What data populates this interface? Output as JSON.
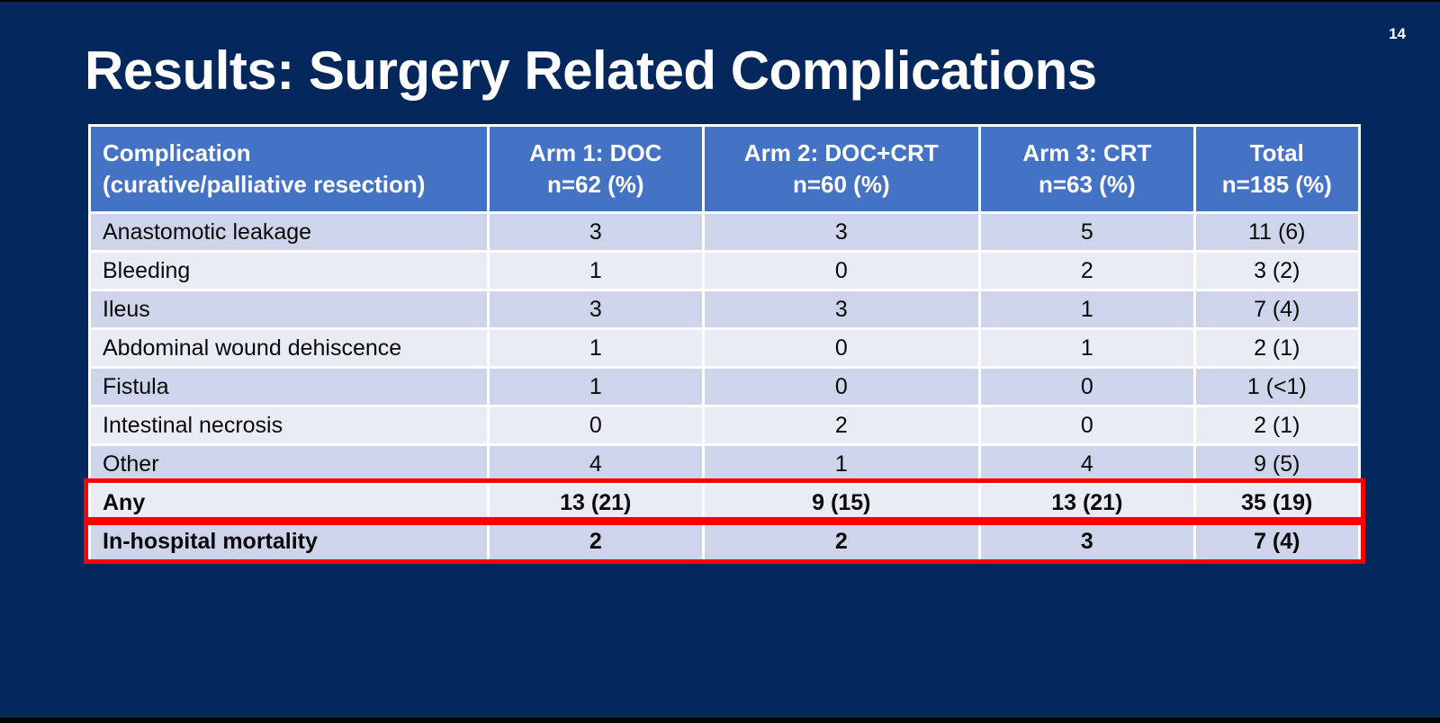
{
  "slide": {
    "page_number": "14",
    "title": "Results: Surgery Related Complications"
  },
  "colors": {
    "background": "#05285c",
    "header_bg": "#4472c4",
    "row_odd": "#ced4e9",
    "row_even": "#e9ebf5",
    "highlight_border": "#ff0000",
    "title_text": "#ffffff",
    "body_text": "#0a0a0a"
  },
  "table": {
    "columns": [
      {
        "label": "Complication\n(curative/palliative resection)",
        "width_pct": 31.4,
        "align": "left"
      },
      {
        "label": "Arm 1: DOC\nn=62 (%)",
        "width_pct": 16.9,
        "align": "center"
      },
      {
        "label": "Arm 2: DOC+CRT\nn=60 (%)",
        "width_pct": 21.8,
        "align": "center"
      },
      {
        "label": "Arm 3: CRT\nn=63 (%)",
        "width_pct": 16.9,
        "align": "center"
      },
      {
        "label": "Total\nn=185 (%)",
        "width_pct": 13.0,
        "align": "center"
      }
    ],
    "rows": [
      {
        "label": "Anastomotic leakage",
        "values": [
          "3",
          "3",
          "5",
          "11 (6)"
        ],
        "bold": false,
        "highlighted": false
      },
      {
        "label": "Bleeding",
        "values": [
          "1",
          "0",
          "2",
          "3 (2)"
        ],
        "bold": false,
        "highlighted": false
      },
      {
        "label": "Ileus",
        "values": [
          "3",
          "3",
          "1",
          "7 (4)"
        ],
        "bold": false,
        "highlighted": false
      },
      {
        "label": "Abdominal wound dehiscence",
        "values": [
          "1",
          "0",
          "1",
          "2 (1)"
        ],
        "bold": false,
        "highlighted": false
      },
      {
        "label": "Fistula",
        "values": [
          "1",
          "0",
          "0",
          "1 (<1)"
        ],
        "bold": false,
        "highlighted": false
      },
      {
        "label": "Intestinal necrosis",
        "values": [
          "0",
          "2",
          "0",
          "2 (1)"
        ],
        "bold": false,
        "highlighted": false
      },
      {
        "label": "Other",
        "values": [
          "4",
          "1",
          "4",
          "9 (5)"
        ],
        "bold": false,
        "highlighted": false
      },
      {
        "label": "Any",
        "values": [
          "13 (21)",
          "9 (15)",
          "13 (21)",
          "35 (19)"
        ],
        "bold": true,
        "highlighted": true
      },
      {
        "label": "In-hospital mortality",
        "values": [
          "2",
          "2",
          "3",
          "7 (4)"
        ],
        "bold": true,
        "highlighted": true
      }
    ]
  },
  "chart_data": {
    "type": "table",
    "title": "Results: Surgery Related Complications",
    "columns": [
      "Complication (curative/palliative resection)",
      "Arm 1: DOC n=62 (%)",
      "Arm 2: DOC+CRT n=60 (%)",
      "Arm 3: CRT n=63 (%)",
      "Total n=185 (%)"
    ],
    "rows": [
      [
        "Anastomotic leakage",
        "3",
        "3",
        "5",
        "11 (6)"
      ],
      [
        "Bleeding",
        "1",
        "0",
        "2",
        "3 (2)"
      ],
      [
        "Ileus",
        "3",
        "3",
        "1",
        "7 (4)"
      ],
      [
        "Abdominal wound dehiscence",
        "1",
        "0",
        "1",
        "2 (1)"
      ],
      [
        "Fistula",
        "1",
        "0",
        "0",
        "1 (<1)"
      ],
      [
        "Intestinal necrosis",
        "0",
        "2",
        "0",
        "2 (1)"
      ],
      [
        "Other",
        "4",
        "1",
        "4",
        "9 (5)"
      ],
      [
        "Any",
        "13 (21)",
        "9 (15)",
        "13 (21)",
        "35 (19)"
      ],
      [
        "In-hospital mortality",
        "2",
        "2",
        "3",
        "7 (4)"
      ]
    ]
  }
}
